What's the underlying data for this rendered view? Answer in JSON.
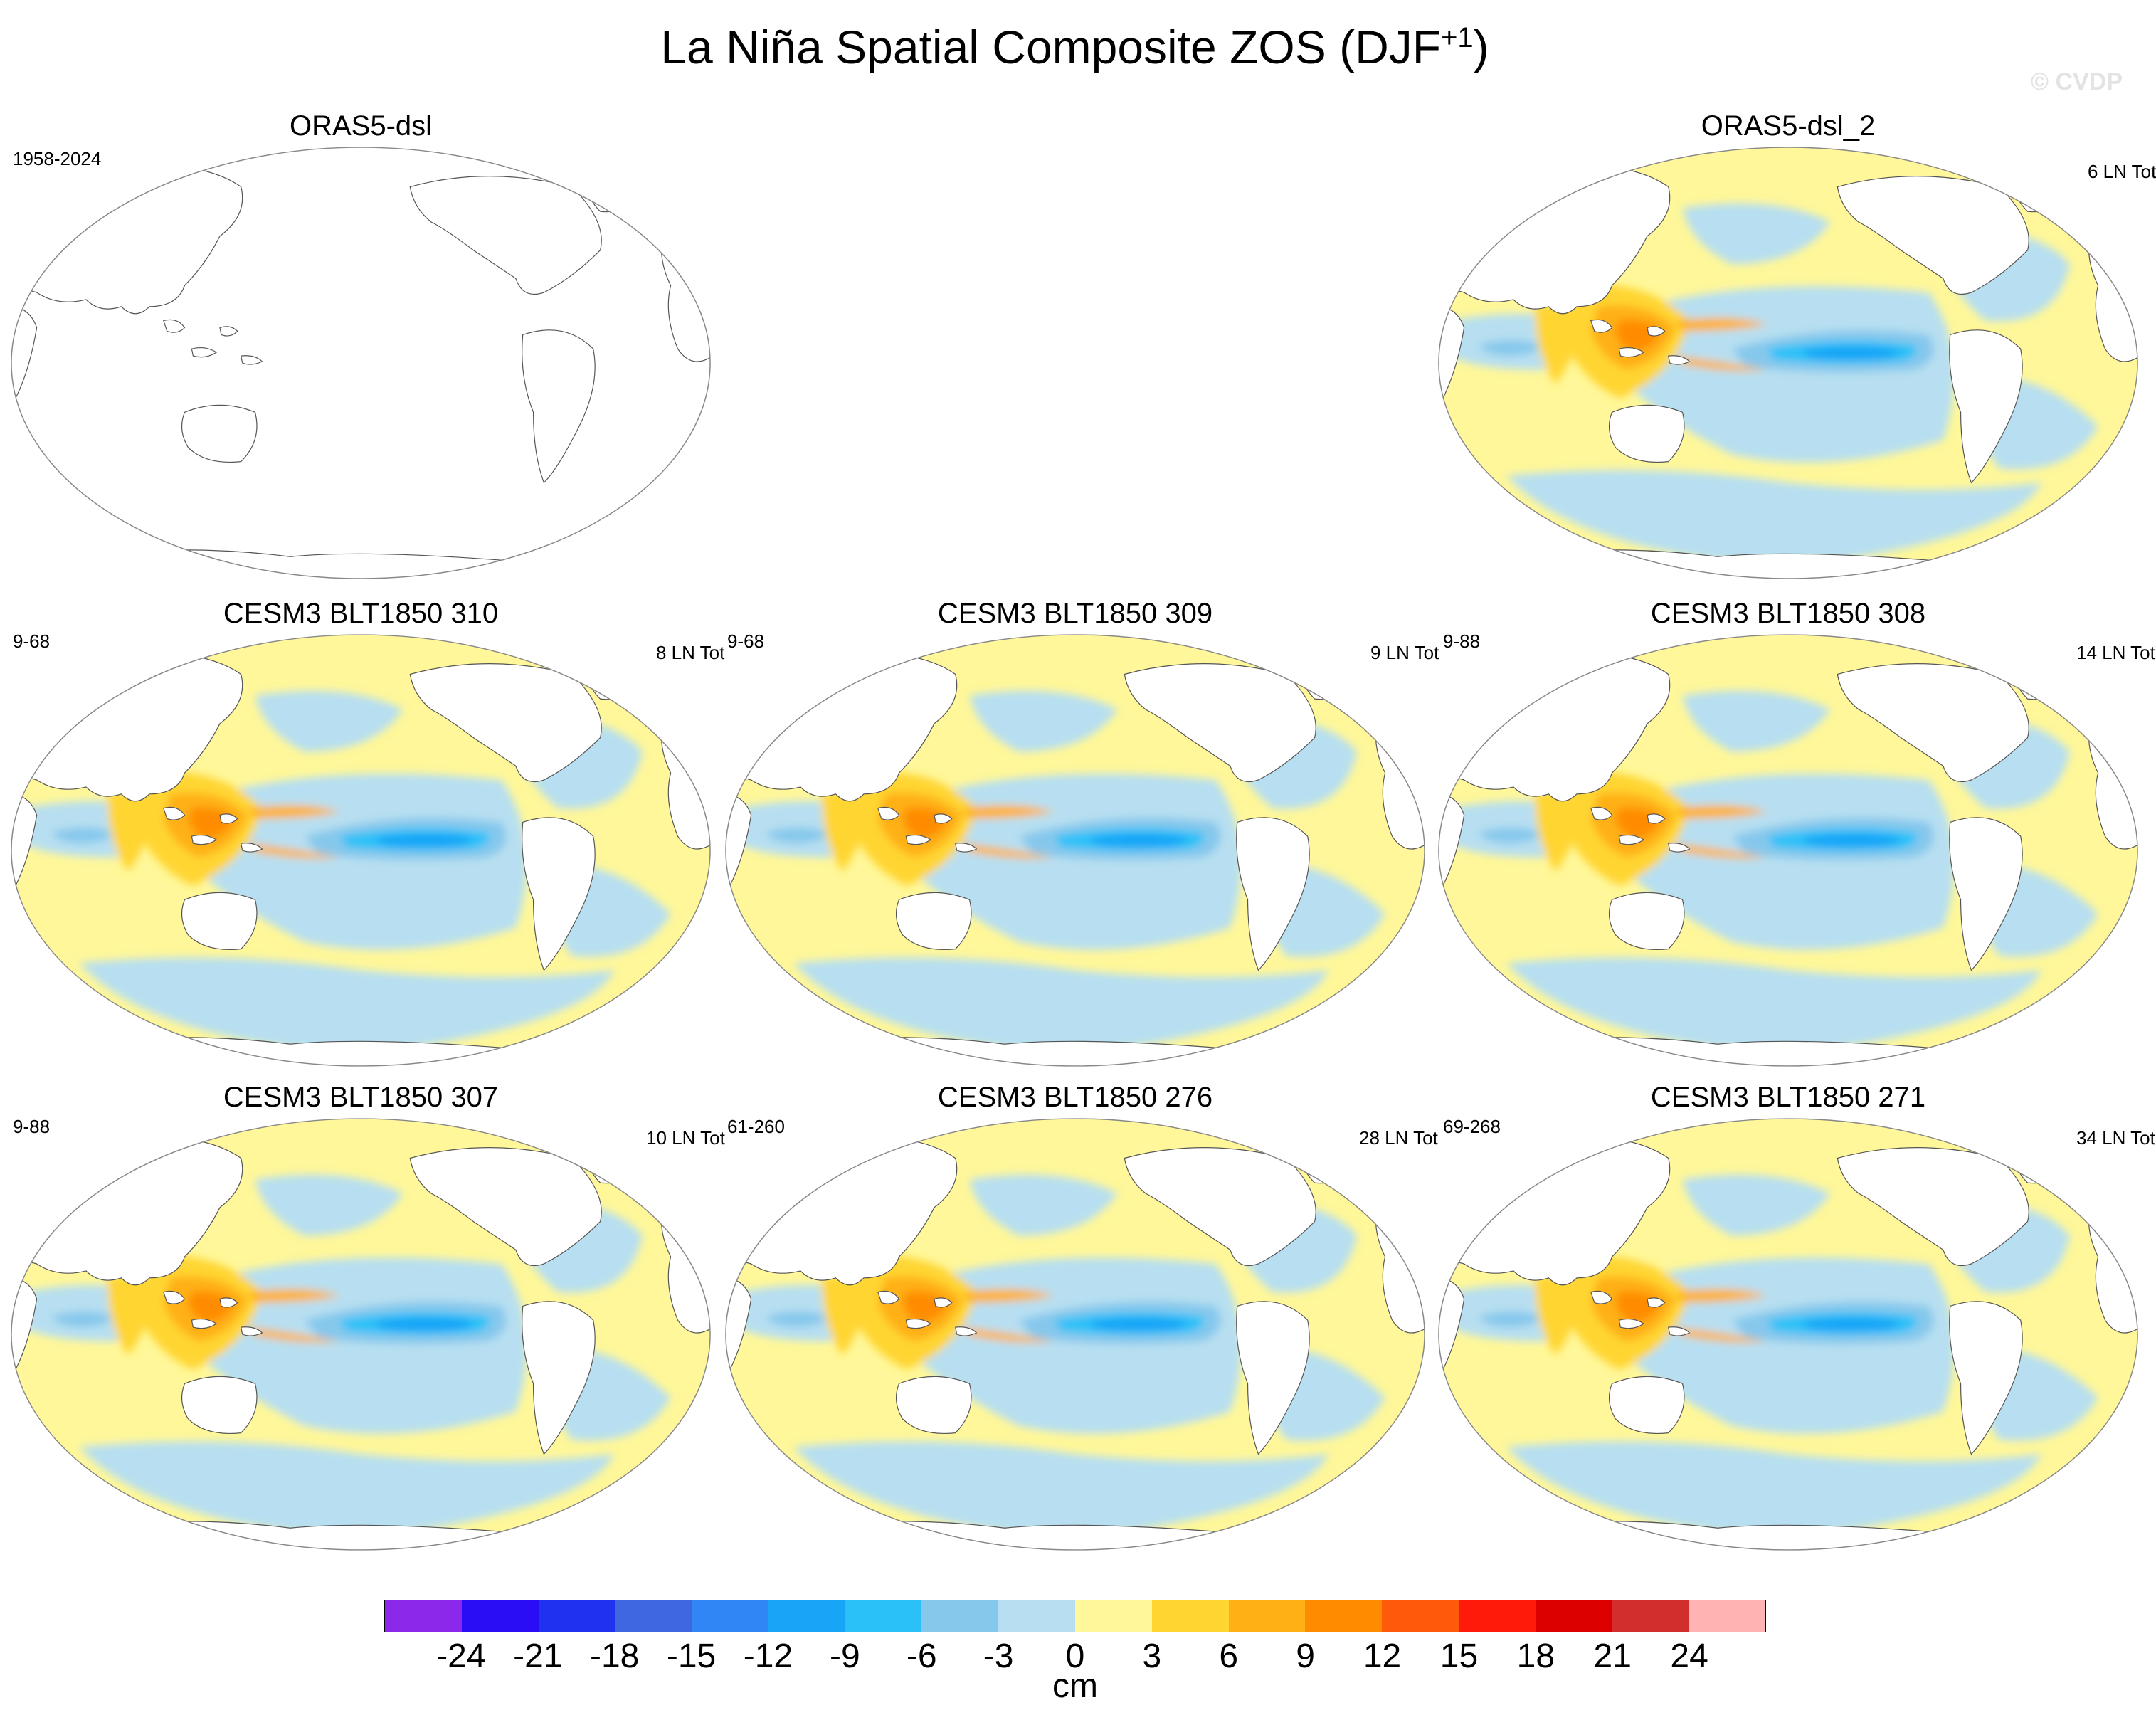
{
  "title": {
    "main": "La Niña Spatial Composite ZOS (DJF",
    "sup": "+1",
    "close": ")"
  },
  "watermark": "© CVDP",
  "colors": {
    "ocean_negative_weak": "#b7dff1",
    "ocean_positive_weak": "#fff799",
    "land": "#ffffff",
    "coast": "#555555"
  },
  "panels": [
    {
      "id": "p0",
      "title": "ORAS5-dsl",
      "left_note": "1958-2024",
      "right_note": "",
      "blank": true
    },
    {
      "id": "p1",
      "title": "ORAS5-dsl_2",
      "left_note": "",
      "right_note": "6 LN Tot",
      "blank": false
    },
    {
      "id": "p2",
      "title": "CESM3 BLT1850 310",
      "left_note": "9-68",
      "right_note": "8 LN Tot",
      "blank": false
    },
    {
      "id": "p3",
      "title": "CESM3 BLT1850 309",
      "left_note": "9-68",
      "right_note": "9 LN Tot",
      "blank": false
    },
    {
      "id": "p4",
      "title": "CESM3 BLT1850 308",
      "left_note": "9-88",
      "right_note": "14 LN Tot",
      "blank": false
    },
    {
      "id": "p5",
      "title": "CESM3 BLT1850 307",
      "left_note": "9-88",
      "right_note": "10 LN Tot",
      "blank": false
    },
    {
      "id": "p6",
      "title": "CESM3 BLT1850 276",
      "left_note": "61-260",
      "right_note": "28 LN Tot",
      "blank": false
    },
    {
      "id": "p7",
      "title": "CESM3 BLT1850 271",
      "left_note": "69-268",
      "right_note": "34 LN Tot",
      "blank": false
    }
  ],
  "colorbar": {
    "units": "cm",
    "levels": [
      "-24",
      "-21",
      "-18",
      "-15",
      "-12",
      "-9",
      "-6",
      "-3",
      "0",
      "3",
      "6",
      "9",
      "12",
      "15",
      "18",
      "21",
      "24"
    ],
    "colors": [
      "#8b28ea",
      "#2a0cf5",
      "#2131f0",
      "#3f67df",
      "#2f86f4",
      "#18a5f7",
      "#2ac1f8",
      "#86c8ec",
      "#b7dff1",
      "#fff799",
      "#ffd532",
      "#ffb014",
      "#ff8c00",
      "#ff5a0a",
      "#ff1a0a",
      "#dc0000",
      "#d32e2e",
      "#ffb3b3"
    ]
  }
}
